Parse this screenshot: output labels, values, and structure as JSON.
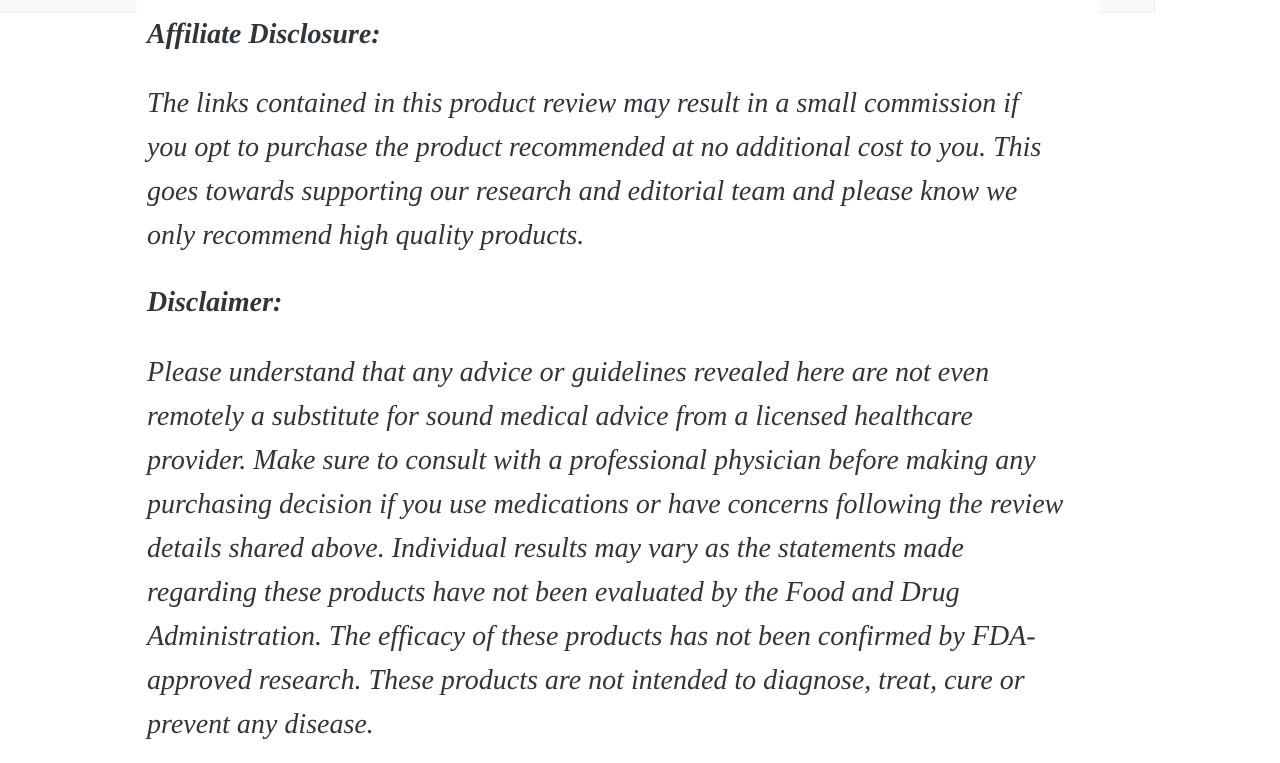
{
  "page": {
    "background_color": "#ffffff",
    "text_color": "#30353a",
    "top_edge_artifact_color": "#fafafa"
  },
  "affiliate": {
    "heading": "Affiliate Disclosure:",
    "lines": [
      "The links contained in this product review may result in a small commission if",
      "you opt to purchase the product recommended at no additional cost to you. This",
      "goes towards supporting our research and editorial team and please know we",
      "only recommend high quality products."
    ]
  },
  "disclaimer": {
    "heading": "Disclaimer:",
    "lines": [
      "Please understand that any advice or guidelines revealed here are not even",
      "remotely a substitute for sound medical advice from a licensed healthcare",
      "provider. Make sure to consult with a professional physician before making any",
      "purchasing decision if you use medications or have concerns following the review",
      "details shared above. Individual results may vary as the statements made",
      "regarding these products have not been evaluated by the Food and Drug",
      "Administration. The efficacy of these products has not been confirmed by FDA-",
      "approved research. These products are not intended to diagnose, treat, cure or",
      "prevent any disease."
    ]
  }
}
